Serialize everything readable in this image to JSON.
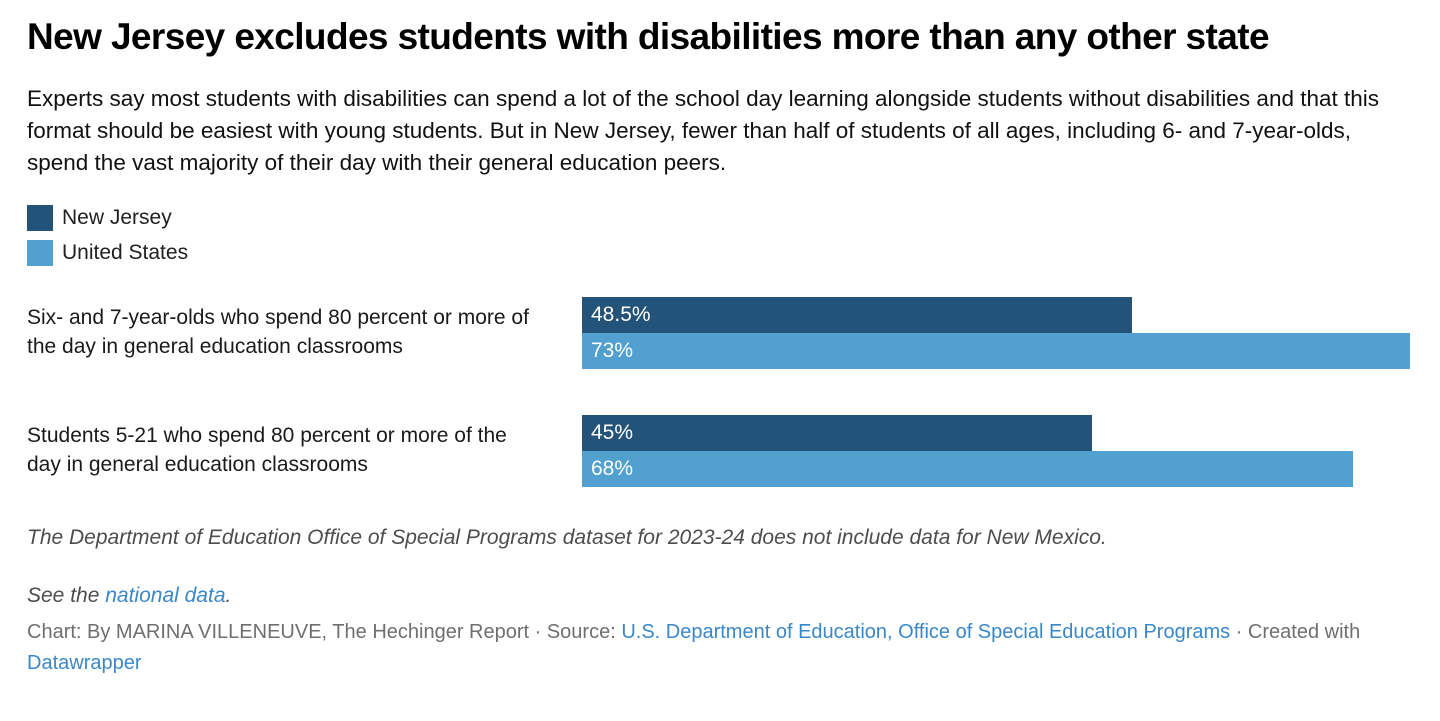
{
  "header": {
    "title": "New Jersey excludes students with disabilities more than any other state",
    "description": "Experts say most students with disabilities can spend a lot of the school day learning alongside students without disabilities and that this format should be easiest with young students. But in New Jersey, fewer than half of students of all ages, including 6- and 7-year-olds, spend the vast majority of their day with their general education peers."
  },
  "colors": {
    "new_jersey": "#235378",
    "united_states": "#51a0cf",
    "link": "#3a87c9",
    "bar_value_text": "#ffffff",
    "note_text": "#4d4d4d",
    "byline_text": "#6f6f6f"
  },
  "chart_data": {
    "type": "bar",
    "orientation": "horizontal",
    "title": "New Jersey excludes students with disabilities more than any other state",
    "categories": [
      "Six- and 7-year-olds who spend 80 percent or more of the day in general education classrooms",
      "Students 5-21 who spend 80 percent or more of the day in general education classrooms"
    ],
    "series": [
      {
        "name": "New Jersey",
        "color": "#235378",
        "values": [
          48.5,
          45
        ],
        "value_labels": [
          "48.5%",
          "45%"
        ]
      },
      {
        "name": "United States",
        "color": "#51a0cf",
        "values": [
          73,
          68
        ],
        "value_labels": [
          "73%",
          "68%"
        ]
      }
    ],
    "xlim": [
      0,
      73
    ],
    "scale_max": 73,
    "grid": false,
    "value_label_position": "inside-left",
    "legend_position": "top-left"
  },
  "footer": {
    "dataset_note": "The Department of Education Office of Special Programs dataset for 2023-24 does not include data for New Mexico.",
    "see_the": "See the ",
    "national_data_link": "national data",
    "see_period": ".",
    "byline_prefix": "Chart: By MARINA VILLENEUVE, The Hechinger Report · Source: ",
    "source_link": "U.S. Department of Education, Office of Special Education Programs",
    "byline_middle": " · Created with ",
    "datawrapper_link": "Datawrapper"
  }
}
